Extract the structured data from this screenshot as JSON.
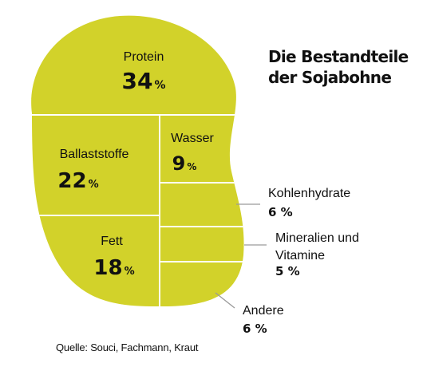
{
  "chart_data": {
    "type": "treemap",
    "title_lines": [
      "Die Bestandteile",
      "der Sojabohne"
    ],
    "unit": "%",
    "segments": [
      {
        "name": "Protein",
        "value": 34
      },
      {
        "name": "Ballaststoffe",
        "value": 22
      },
      {
        "name": "Fett",
        "value": 18
      },
      {
        "name": "Wasser",
        "value": 9
      },
      {
        "name": "Kohlenhydrate",
        "value": 6
      },
      {
        "name_lines": [
          "Mineralien und",
          "Vitamine"
        ],
        "value": 5
      },
      {
        "name": "Andere",
        "value": 6
      }
    ],
    "source": "Quelle: Souci, Fachmann, Kraut"
  },
  "colors": {
    "fill": "#d2d22a",
    "stroke": "#ffffff",
    "leader": "#9a9a9a",
    "text": "#111111"
  }
}
